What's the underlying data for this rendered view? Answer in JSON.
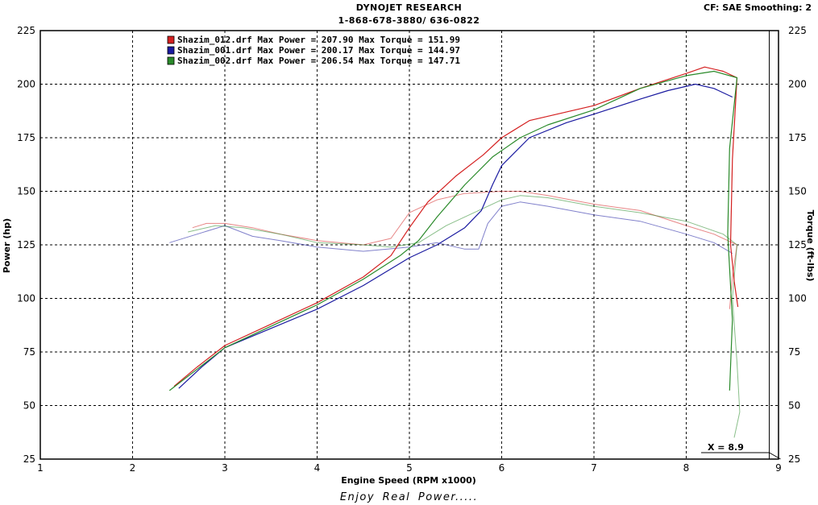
{
  "header": {
    "company": "DYNOJET RESEARCH",
    "phone": "1-868-678-3880/ 636-0822",
    "correction": "CF: SAE  Smoothing: 2"
  },
  "footer": {
    "tagline": "Enjoy  Real  Power....."
  },
  "chart_data": {
    "type": "line",
    "xlabel": "Engine Speed (RPM x1000)",
    "ylabel_left": "Power (hp)",
    "ylabel_right": "Torque (ft-lbs)",
    "xlim": [
      1,
      9
    ],
    "ylim": [
      25,
      225
    ],
    "xticks": [
      1,
      2,
      3,
      4,
      5,
      6,
      7,
      8,
      9
    ],
    "yticks": [
      25,
      50,
      75,
      100,
      125,
      150,
      175,
      200,
      225
    ],
    "grid": true,
    "legend_position": "top-left",
    "cursor_label": "X = 8.9",
    "cursor_x": 8.9,
    "series": [
      {
        "name": "Shazim_012.drf",
        "legend_text": "Shazim_012.drf Max Power = 207.90     Max Torque = 151.99",
        "color": "#d42020",
        "power": [
          [
            2.45,
            59
          ],
          [
            2.7,
            68
          ],
          [
            3.0,
            78
          ],
          [
            3.5,
            88
          ],
          [
            4.0,
            98
          ],
          [
            4.5,
            110
          ],
          [
            4.8,
            120
          ],
          [
            5.0,
            133
          ],
          [
            5.2,
            145
          ],
          [
            5.5,
            157
          ],
          [
            5.8,
            167
          ],
          [
            6.0,
            175
          ],
          [
            6.3,
            183
          ],
          [
            6.7,
            187
          ],
          [
            7.0,
            190
          ],
          [
            7.5,
            198
          ],
          [
            8.0,
            205
          ],
          [
            8.2,
            208
          ],
          [
            8.4,
            206
          ],
          [
            8.55,
            203
          ],
          [
            8.5,
            165
          ],
          [
            8.48,
            125
          ],
          [
            8.52,
            108
          ],
          [
            8.56,
            96
          ]
        ],
        "torque": [
          [
            2.65,
            133
          ],
          [
            2.8,
            135
          ],
          [
            3.0,
            135
          ],
          [
            3.3,
            133
          ],
          [
            3.6,
            130
          ],
          [
            4.0,
            127
          ],
          [
            4.5,
            125
          ],
          [
            4.8,
            128
          ],
          [
            5.0,
            140
          ],
          [
            5.3,
            146
          ],
          [
            5.6,
            149
          ],
          [
            6.0,
            150
          ],
          [
            6.2,
            150
          ],
          [
            6.5,
            148
          ],
          [
            7.0,
            144
          ],
          [
            7.5,
            141
          ],
          [
            8.0,
            134
          ],
          [
            8.3,
            130
          ],
          [
            8.55,
            125
          ],
          [
            8.5,
            110
          ],
          [
            8.47,
            95
          ]
        ]
      },
      {
        "name": "Shazim_001.drf",
        "legend_text": "Shazim_001.drf Max Power = 200.17     Max Torque = 144.97",
        "color": "#1a1aa0",
        "power": [
          [
            2.5,
            58
          ],
          [
            2.75,
            68
          ],
          [
            3.0,
            77
          ],
          [
            3.5,
            86
          ],
          [
            4.0,
            95
          ],
          [
            4.5,
            106
          ],
          [
            5.0,
            119
          ],
          [
            5.3,
            125
          ],
          [
            5.6,
            133
          ],
          [
            5.78,
            141
          ],
          [
            5.9,
            153
          ],
          [
            6.0,
            162
          ],
          [
            6.3,
            175
          ],
          [
            6.7,
            182
          ],
          [
            7.0,
            186
          ],
          [
            7.5,
            193
          ],
          [
            7.8,
            197
          ],
          [
            8.1,
            200
          ],
          [
            8.3,
            198
          ],
          [
            8.5,
            194
          ]
        ],
        "torque": [
          [
            2.4,
            126
          ],
          [
            2.7,
            130
          ],
          [
            3.0,
            134
          ],
          [
            3.3,
            129
          ],
          [
            3.6,
            127
          ],
          [
            4.0,
            124
          ],
          [
            4.5,
            122
          ],
          [
            5.0,
            124
          ],
          [
            5.3,
            126
          ],
          [
            5.6,
            123
          ],
          [
            5.75,
            123
          ],
          [
            5.85,
            135
          ],
          [
            6.0,
            143
          ],
          [
            6.2,
            145
          ],
          [
            6.5,
            143
          ],
          [
            7.0,
            139
          ],
          [
            7.5,
            136
          ],
          [
            8.0,
            130
          ],
          [
            8.3,
            126
          ],
          [
            8.5,
            121
          ]
        ]
      },
      {
        "name": "Shazim_002.drf",
        "legend_text": "Shazim_002.drf Max Power = 206.54     Max Torque = 147.71",
        "color": "#2a8a2a",
        "power": [
          [
            2.4,
            57
          ],
          [
            2.7,
            67
          ],
          [
            3.0,
            77
          ],
          [
            3.5,
            87
          ],
          [
            4.0,
            97
          ],
          [
            4.5,
            109
          ],
          [
            4.9,
            120
          ],
          [
            5.1,
            127
          ],
          [
            5.3,
            138
          ],
          [
            5.6,
            153
          ],
          [
            5.9,
            166
          ],
          [
            6.2,
            175
          ],
          [
            6.5,
            181
          ],
          [
            7.0,
            188
          ],
          [
            7.5,
            198
          ],
          [
            8.0,
            204
          ],
          [
            8.3,
            206
          ],
          [
            8.55,
            203
          ],
          [
            8.47,
            170
          ],
          [
            8.45,
            130
          ],
          [
            8.5,
            90
          ],
          [
            8.47,
            57
          ]
        ],
        "torque": [
          [
            2.6,
            131
          ],
          [
            2.9,
            134
          ],
          [
            3.2,
            133
          ],
          [
            3.6,
            130
          ],
          [
            4.0,
            126
          ],
          [
            4.5,
            125
          ],
          [
            4.8,
            124
          ],
          [
            5.1,
            126
          ],
          [
            5.4,
            134
          ],
          [
            5.7,
            140
          ],
          [
            6.0,
            146
          ],
          [
            6.2,
            148
          ],
          [
            6.5,
            147
          ],
          [
            7.0,
            143
          ],
          [
            7.5,
            140
          ],
          [
            8.0,
            136
          ],
          [
            8.4,
            130
          ],
          [
            8.55,
            125
          ],
          [
            8.5,
            100
          ],
          [
            8.55,
            70
          ],
          [
            8.58,
            47
          ],
          [
            8.52,
            35
          ]
        ]
      }
    ]
  }
}
